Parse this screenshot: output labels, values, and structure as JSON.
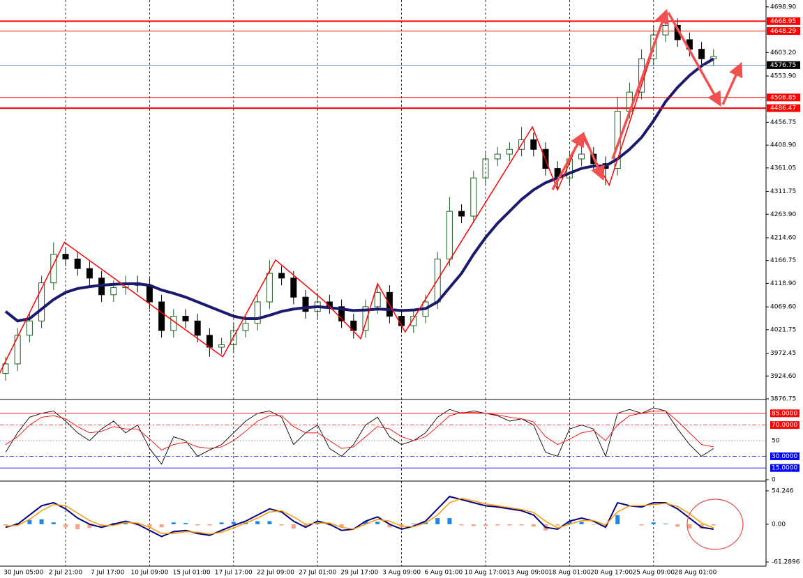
{
  "chart_data": [
    {
      "type": "candlestick",
      "colors": {
        "up": "#1b5e20",
        "down": "#000000"
      },
      "open": [
        3930,
        3950,
        4010,
        4040,
        4120,
        4180,
        4170,
        4150,
        4130,
        4095,
        4110,
        4120,
        4115,
        4080,
        4020,
        4050,
        4040,
        4010,
        3985,
        3990,
        4020,
        4035,
        4080,
        4140,
        4130,
        4090,
        4060,
        4080,
        4070,
        4040,
        4020,
        4070,
        4100,
        4050,
        4030,
        4050,
        4080,
        4170,
        4270,
        4260,
        4340,
        4380,
        4390,
        4400,
        4420,
        4400,
        4360,
        4340,
        4380,
        4390,
        4370,
        4360,
        4480,
        4520,
        4590,
        4640,
        4660,
        4630,
        4610,
        4590
      ],
      "high": [
        3965,
        4025,
        4055,
        4135,
        4205,
        4195,
        4185,
        4165,
        4145,
        4125,
        4135,
        4135,
        4130,
        4095,
        4065,
        4065,
        4055,
        4025,
        4005,
        4035,
        4050,
        4095,
        4168,
        4155,
        4145,
        4105,
        4095,
        4095,
        4085,
        4055,
        4085,
        4118,
        4115,
        4065,
        4065,
        4095,
        4185,
        4300,
        4285,
        4355,
        4395,
        4405,
        4415,
        4447,
        4435,
        4415,
        4375,
        4395,
        4430,
        4405,
        4385,
        4510,
        4540,
        4610,
        4660,
        4690,
        4675,
        4645,
        4625,
        4610
      ],
      "low": [
        3915,
        3935,
        3995,
        4025,
        4105,
        4155,
        4135,
        4115,
        4080,
        4080,
        4095,
        4100,
        4065,
        4005,
        4005,
        4025,
        3995,
        3965,
        3970,
        3975,
        4005,
        4020,
        4065,
        4115,
        4075,
        4045,
        4045,
        4055,
        4025,
        4003,
        4005,
        4055,
        4035,
        4015,
        4015,
        4035,
        4065,
        4155,
        4245,
        4245,
        4325,
        4365,
        4375,
        4385,
        4385,
        4345,
        4315,
        4325,
        4365,
        4355,
        4325,
        4345,
        4465,
        4505,
        4575,
        4625,
        4615,
        4595,
        4575,
        4575
      ],
      "close": [
        3950,
        4010,
        4040,
        4120,
        4180,
        4170,
        4150,
        4130,
        4095,
        4110,
        4120,
        4115,
        4080,
        4020,
        4050,
        4040,
        4010,
        3985,
        3990,
        4020,
        4035,
        4080,
        4140,
        4130,
        4090,
        4060,
        4080,
        4070,
        4040,
        4020,
        4070,
        4100,
        4050,
        4030,
        4050,
        4080,
        4170,
        4270,
        4260,
        4340,
        4380,
        4390,
        4400,
        4420,
        4400,
        4360,
        4340,
        4380,
        4390,
        4370,
        4360,
        4480,
        4520,
        4590,
        4640,
        4660,
        4630,
        4610,
        4590,
        4595
      ],
      "ma": {
        "color": "#1a1a6e",
        "values": [
          4060,
          4040,
          4045,
          4065,
          4085,
          4100,
          4108,
          4112,
          4115,
          4117,
          4118,
          4118,
          4115,
          4105,
          4098,
          4090,
          4080,
          4070,
          4060,
          4050,
          4045,
          4045,
          4052,
          4060,
          4065,
          4068,
          4070,
          4068,
          4065,
          4062,
          4063,
          4065,
          4064,
          4062,
          4063,
          4066,
          4080,
          4110,
          4140,
          4180,
          4215,
          4245,
          4270,
          4295,
          4315,
          4330,
          4340,
          4350,
          4360,
          4365,
          4365,
          4380,
          4400,
          4425,
          4460,
          4500,
          4530,
          4555,
          4575,
          4590
        ]
      },
      "zigzag": {
        "color": "#ff0000",
        "x": [
          -0.5,
          4.9,
          18.1,
          22.5,
          26.5,
          29.6,
          31,
          33.3,
          43.9,
          46,
          48,
          50.3,
          55
        ],
        "values": [
          3930,
          4205,
          3965,
          4168,
          4083,
          4003,
          4118,
          4017,
          4447,
          4315,
          4430,
          4325,
          4690
        ]
      },
      "levels": [
        {
          "value": 4668.95,
          "color": "#ff0000",
          "width": 2
        },
        {
          "value": 4648.29,
          "color": "#ff0000",
          "width": 1
        },
        {
          "value": 4576.75,
          "color": "#4060d0",
          "width": 0.7,
          "box": "#000000"
        },
        {
          "value": 4508.85,
          "color": "#ff0000",
          "width": 1
        },
        {
          "value": 4486.47,
          "color": "#ff0000",
          "width": 2
        }
      ],
      "ylim": [
        3876.75,
        4713.3
      ],
      "yticks": [
        {
          "value": 4698.9,
          "label": "4698.90"
        },
        {
          "value": 4603.2,
          "label": "4603.20"
        },
        {
          "value": 4553.9,
          "label": "4553.90"
        },
        4456.75,
        {
          "value": 4408.9,
          "label": "4408.90"
        },
        4361.05,
        4311.75,
        {
          "value": 4263.9,
          "label": "4263.90"
        },
        {
          "value": 4214.6,
          "label": "4214.60"
        },
        4166.75,
        {
          "value": 4118.9,
          "label": "4118.90"
        },
        {
          "value": 4069.6,
          "label": "4069.60"
        },
        4021.75,
        3972.45,
        {
          "value": 3924.6,
          "label": "3924.60"
        },
        3876.75
      ],
      "xticks": [
        {
          "value": 1.5,
          "label": "30 Jun 05:00"
        },
        {
          "value": 5,
          "label": "2 Jul 21:00"
        },
        {
          "value": 8.5,
          "label": "7 Jul 17:00"
        },
        {
          "value": 12,
          "label": "10 Jul 09:00"
        },
        {
          "value": 15.5,
          "label": "15 Jul 01:00"
        },
        {
          "value": 19,
          "label": "17 Jul 17:00"
        },
        {
          "value": 22.5,
          "label": "22 Jul 09:00"
        },
        {
          "value": 26,
          "label": "27 Jul 01:00"
        },
        {
          "value": 29.5,
          "label": "29 Jul 17:00"
        },
        {
          "value": 33,
          "label": "3 Aug 09:00"
        },
        {
          "value": 36.5,
          "label": "6 Aug 01:00"
        },
        {
          "value": 40,
          "label": "10 Aug 17:00"
        },
        {
          "value": 43.5,
          "label": "13 Aug 09:00"
        },
        {
          "value": 47,
          "label": "18 Aug 01:00"
        },
        {
          "value": 50.5,
          "label": "20 Aug 17:00"
        },
        {
          "value": 54,
          "label": "25 Aug 09:00"
        },
        {
          "value": 57.5,
          "label": "28 Aug 01:00"
        }
      ]
    },
    {
      "type": "stochastic",
      "lines": [
        {
          "color": "#000000",
          "values": [
            35,
            60,
            80,
            85,
            88,
            75,
            60,
            50,
            65,
            75,
            60,
            70,
            40,
            20,
            55,
            50,
            30,
            38,
            45,
            60,
            75,
            85,
            88,
            80,
            45,
            60,
            70,
            40,
            30,
            45,
            70,
            80,
            55,
            45,
            50,
            60,
            80,
            90,
            85,
            88,
            85,
            82,
            75,
            78,
            70,
            35,
            30,
            65,
            70,
            65,
            30,
            85,
            90,
            85,
            92,
            88,
            65,
            45,
            30,
            40
          ]
        },
        {
          "color": "#ff0000",
          "values": [
            45,
            55,
            70,
            80,
            82,
            78,
            68,
            60,
            62,
            68,
            65,
            65,
            52,
            38,
            45,
            48,
            42,
            40,
            42,
            50,
            62,
            75,
            82,
            82,
            68,
            60,
            60,
            50,
            40,
            42,
            55,
            68,
            65,
            55,
            50,
            55,
            68,
            82,
            86,
            86,
            85,
            83,
            80,
            78,
            74,
            55,
            45,
            52,
            60,
            63,
            50,
            70,
            82,
            85,
            88,
            88,
            75,
            60,
            45,
            42
          ]
        }
      ],
      "ylim": [
        0,
        100
      ],
      "yticks": [
        {
          "value": 85,
          "label": "85.0000",
          "color": "#ff0000",
          "dash": "",
          "box": "#ff0000"
        },
        {
          "value": 70,
          "label": "70.0000",
          "color": "#ff0000",
          "dash": "6 3 2 3",
          "box": "#ff0000"
        },
        {
          "value": 50,
          "color": "#888888",
          "dash": "2 2"
        },
        {
          "value": 30,
          "label": "30.0000",
          "color": "#0000ff",
          "dash": "6 3 2 3",
          "box": "#0000ff"
        },
        {
          "value": 15,
          "label": "15.0000",
          "color": "#0000ff",
          "dash": "",
          "box": "#0000ff"
        },
        0
      ]
    },
    {
      "type": "macd",
      "histogram": {
        "colors": {
          "up": "#1e88e5",
          "down": "#f4a582"
        },
        "values": [
          -2,
          2,
          7,
          8,
          3,
          -5,
          -8,
          -6,
          -3,
          2,
          2,
          -2,
          -5,
          -5,
          3,
          2,
          -2,
          -2,
          3,
          4,
          3,
          5,
          5,
          -2,
          -7,
          -5,
          3,
          -2,
          -5,
          0,
          5,
          4,
          -5,
          -5,
          1,
          3,
          10,
          10,
          -2,
          -3,
          -3,
          -2,
          -2,
          -2,
          -4,
          -10,
          -2,
          5,
          4,
          -1,
          -4,
          15,
          0,
          -2,
          3,
          1,
          -4,
          -7,
          -7,
          -2
        ]
      },
      "lines": [
        {
          "color": "#000080",
          "width": 2,
          "values": [
            -5,
            0,
            15,
            30,
            35,
            25,
            10,
            0,
            -5,
            0,
            5,
            0,
            -10,
            -20,
            -12,
            -10,
            -15,
            -18,
            -10,
            -2,
            5,
            15,
            25,
            20,
            5,
            -5,
            5,
            0,
            -10,
            -8,
            5,
            12,
            0,
            -8,
            -3,
            5,
            25,
            45,
            40,
            35,
            30,
            28,
            25,
            22,
            15,
            -5,
            -8,
            5,
            10,
            5,
            -5,
            35,
            30,
            28,
            35,
            35,
            25,
            10,
            -5,
            -8
          ]
        },
        {
          "color": "#ff9900",
          "width": 1.5,
          "values": [
            -3,
            -2,
            8,
            22,
            32,
            30,
            18,
            6,
            -2,
            -2,
            3,
            2,
            -5,
            -15,
            -15,
            -12,
            -13,
            -16,
            -13,
            -6,
            2,
            10,
            20,
            22,
            12,
            0,
            2,
            2,
            -5,
            -8,
            0,
            8,
            5,
            -3,
            -4,
            2,
            15,
            35,
            42,
            38,
            33,
            30,
            27,
            24,
            19,
            5,
            -6,
            0,
            6,
            6,
            -1,
            20,
            30,
            30,
            32,
            34,
            29,
            17,
            2,
            -6
          ]
        }
      ],
      "ylim": [
        -61.2896,
        54.246
      ],
      "yticks": [
        54.246,
        {
          "value": 0,
          "label": "0.00"
        },
        -61.2896
      ]
    }
  ]
}
